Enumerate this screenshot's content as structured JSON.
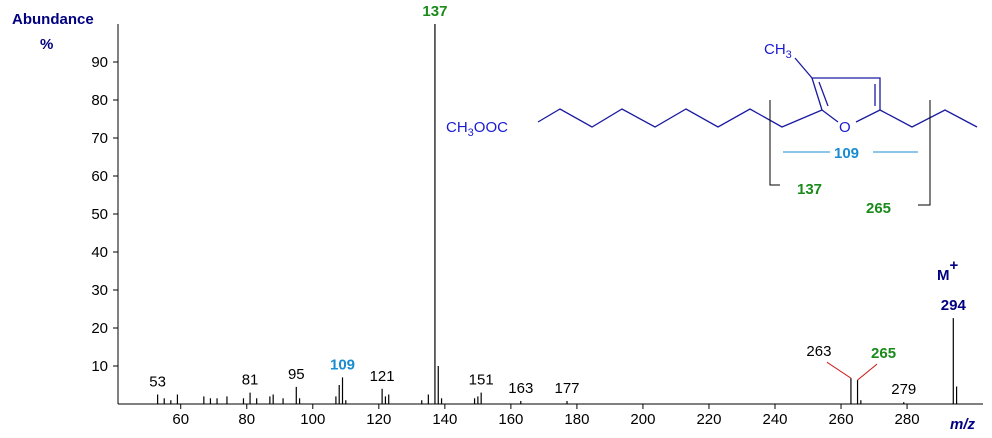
{
  "chart_data": {
    "type": "spectrum",
    "y_title": [
      "Abundance",
      "%"
    ],
    "x_title": "m/z",
    "color": "#000000",
    "x": [
      53,
      55,
      57,
      59,
      67,
      69,
      71,
      74,
      79,
      81,
      83,
      87,
      88,
      91,
      95,
      96,
      107,
      108,
      109,
      110,
      121,
      122,
      123,
      133,
      135,
      137,
      138,
      139,
      149,
      150,
      151,
      163,
      177,
      263,
      265,
      266,
      279,
      294,
      295
    ],
    "values": [
      2.5,
      1.5,
      1,
      2.5,
      2,
      1.5,
      1.5,
      2,
      1.5,
      3,
      1.5,
      2,
      2.5,
      1.5,
      4.5,
      1.5,
      2,
      5,
      7,
      1,
      4,
      2,
      2.5,
      1,
      2.5,
      100,
      10,
      1.5,
      1.5,
      2,
      3,
      0.8,
      0.8,
      6.8,
      6.3,
      1,
      0.5,
      22.6,
      4.6
    ],
    "xlim": [
      41,
      303
    ],
    "xticks": [
      60,
      80,
      100,
      120,
      140,
      160,
      180,
      200,
      220,
      240,
      260,
      280
    ],
    "ylim": [
      0,
      100
    ],
    "yticks": [
      10,
      20,
      30,
      40,
      50,
      60,
      70,
      80,
      90
    ],
    "peak_labels": [
      53,
      81,
      95,
      109,
      121,
      137,
      151,
      163,
      177,
      263,
      265,
      279,
      294
    ],
    "peak_label_colors": [
      "#000000",
      "#000000",
      "#000000",
      "#1a8cd0",
      "#000000",
      "#1a8a1a",
      "#000000",
      "#000000",
      "#000000",
      "#000000",
      "#1a8a1a",
      "#000000",
      "#000080"
    ],
    "leader_color": "#cc2222",
    "molecular_ion": {
      "text": "M",
      "sup": "+"
    }
  },
  "structure": {
    "ester": [
      "CH",
      "3",
      "OOC"
    ],
    "methyl": [
      "CH",
      "3"
    ],
    "ring_oxygen": "O",
    "fragments": [
      "109",
      "137",
      "265"
    ]
  }
}
